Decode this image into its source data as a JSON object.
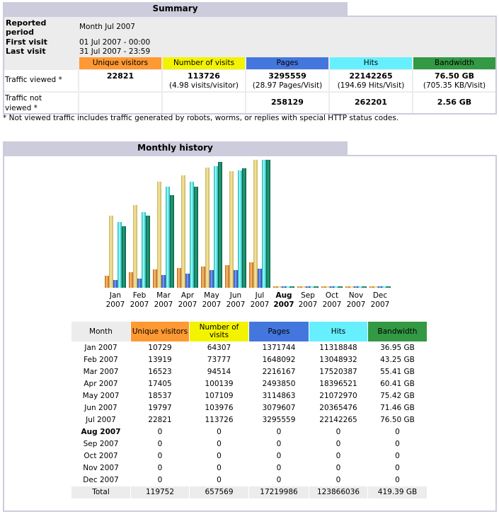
{
  "summary": {
    "title": "Summary",
    "reported_period_label": "Reported period",
    "reported_period": "Month Jul 2007",
    "first_visit_label": "First visit",
    "first_visit": "01 Jul 2007 - 00:00",
    "last_visit_label": "Last visit",
    "last_visit": "31 Jul 2007 - 23:59",
    "columns": [
      "Unique visitors",
      "Number of visits",
      "Pages",
      "Hits",
      "Bandwidth"
    ],
    "viewed_label": "Traffic viewed *",
    "viewed": [
      "22821",
      "113726",
      "3295559",
      "22142265",
      "76.50 GB"
    ],
    "viewed_sub": [
      "",
      "(4.98 visits/visitor)",
      "(28.97 Pages/Visit)",
      "(194.69 Hits/Visit)",
      "(705.35 KB/Visit)"
    ],
    "not_viewed_label": "Traffic not viewed *",
    "not_viewed": [
      "",
      "",
      "258129",
      "262201",
      "2.56 GB"
    ],
    "footnote": "* Not viewed traffic includes traffic generated by robots, worms, or replies with special HTTP status codes."
  },
  "colors": {
    "visitors": "#ff9933",
    "visits": "#f3f300",
    "pages": "#4477dd",
    "hits": "#66f0ff",
    "bandwidth": "#339944",
    "title_bar": "#ccccdd"
  },
  "history": {
    "title": "Monthly history",
    "headers": [
      "Month",
      "Unique visitors",
      "Number of visits",
      "Pages",
      "Hits",
      "Bandwidth"
    ],
    "rows": [
      [
        "Jan 2007",
        "10729",
        "64307",
        "1371744",
        "11318848",
        "36.95 GB"
      ],
      [
        "Feb 2007",
        "13919",
        "73777",
        "1648092",
        "13048932",
        "43.25 GB"
      ],
      [
        "Mar 2007",
        "16523",
        "94514",
        "2216167",
        "17520387",
        "55.41 GB"
      ],
      [
        "Apr 2007",
        "17405",
        "100139",
        "2493850",
        "18396521",
        "60.41 GB"
      ],
      [
        "May 2007",
        "18537",
        "107109",
        "3114863",
        "21072970",
        "75.42 GB"
      ],
      [
        "Jun 2007",
        "19797",
        "103976",
        "3079607",
        "20365476",
        "71.46 GB"
      ],
      [
        "Jul 2007",
        "22821",
        "113726",
        "3295559",
        "22142265",
        "76.50 GB"
      ],
      [
        "Aug 2007",
        "0",
        "0",
        "0",
        "0",
        "0"
      ],
      [
        "Sep 2007",
        "0",
        "0",
        "0",
        "0",
        "0"
      ],
      [
        "Oct 2007",
        "0",
        "0",
        "0",
        "0",
        "0"
      ],
      [
        "Nov 2007",
        "0",
        "0",
        "0",
        "0",
        "0"
      ],
      [
        "Dec 2007",
        "0",
        "0",
        "0",
        "0",
        "0"
      ]
    ],
    "current_month": "Aug 2007",
    "total": [
      "Total",
      "119752",
      "657569",
      "17219986",
      "123866036",
      "419.39 GB"
    ]
  },
  "chart_data": {
    "type": "bar",
    "categories": [
      "Jan 2007",
      "Feb 2007",
      "Mar 2007",
      "Apr 2007",
      "May 2007",
      "Jun 2007",
      "Jul 2007",
      "Aug 2007",
      "Sep 2007",
      "Oct 2007",
      "Nov 2007",
      "Dec 2007"
    ],
    "month_labels": [
      [
        "Jan",
        "2007"
      ],
      [
        "Feb",
        "2007"
      ],
      [
        "Mar",
        "2007"
      ],
      [
        "Apr",
        "2007"
      ],
      [
        "May",
        "2007"
      ],
      [
        "Jun",
        "2007"
      ],
      [
        "Jul",
        "2007"
      ],
      [
        "Aug",
        "2007"
      ],
      [
        "Sep",
        "2007"
      ],
      [
        "Oct",
        "2007"
      ],
      [
        "Nov",
        "2007"
      ],
      [
        "Dec",
        "2007"
      ]
    ],
    "series": [
      {
        "key": "visitors",
        "values": [
          10729,
          13919,
          16523,
          17405,
          18537,
          19797,
          22821,
          0,
          0,
          0,
          0,
          0
        ]
      },
      {
        "key": "visits",
        "values": [
          64307,
          73777,
          94514,
          100139,
          107109,
          103976,
          113726,
          0,
          0,
          0,
          0,
          0
        ]
      },
      {
        "key": "pages",
        "values": [
          1371744,
          1648092,
          2216167,
          2493850,
          3114863,
          3079607,
          3295559,
          0,
          0,
          0,
          0,
          0
        ]
      },
      {
        "key": "hits",
        "values": [
          11318848,
          13048932,
          17520387,
          18396521,
          21072970,
          20365476,
          22142265,
          0,
          0,
          0,
          0,
          0
        ]
      },
      {
        "key": "bandwidth_gb",
        "values": [
          36.95,
          43.25,
          55.41,
          60.41,
          75.42,
          71.46,
          76.5,
          0,
          0,
          0,
          0,
          0
        ]
      }
    ],
    "grid": false
  }
}
